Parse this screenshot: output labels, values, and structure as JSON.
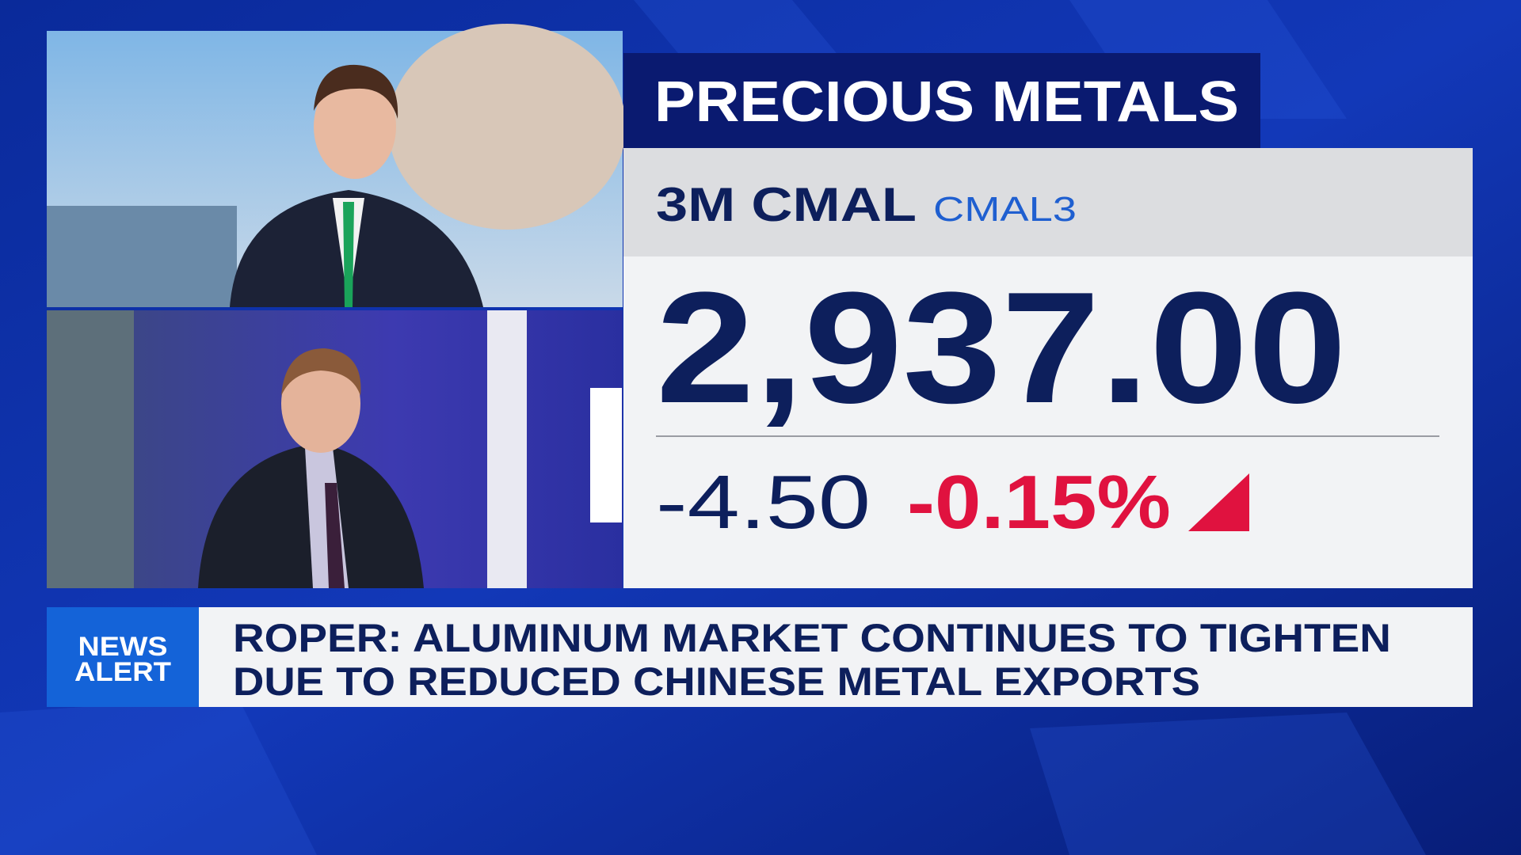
{
  "header": {
    "title": "PRECIOUS METALS"
  },
  "quote": {
    "name": "3M CMAL",
    "symbol": "CMAL3",
    "price": "2,937.00",
    "change": "-4.50",
    "change_pct": "-0.15%"
  },
  "news_alert": {
    "label_lines": [
      "NEWS",
      "ALERT"
    ],
    "headline_lines": [
      "ROPER: ALUMINUM MARKET CONTINUES TO TIGHTEN",
      "DUE TO REDUCED CHINESE METAL EXPORTS"
    ]
  }
}
